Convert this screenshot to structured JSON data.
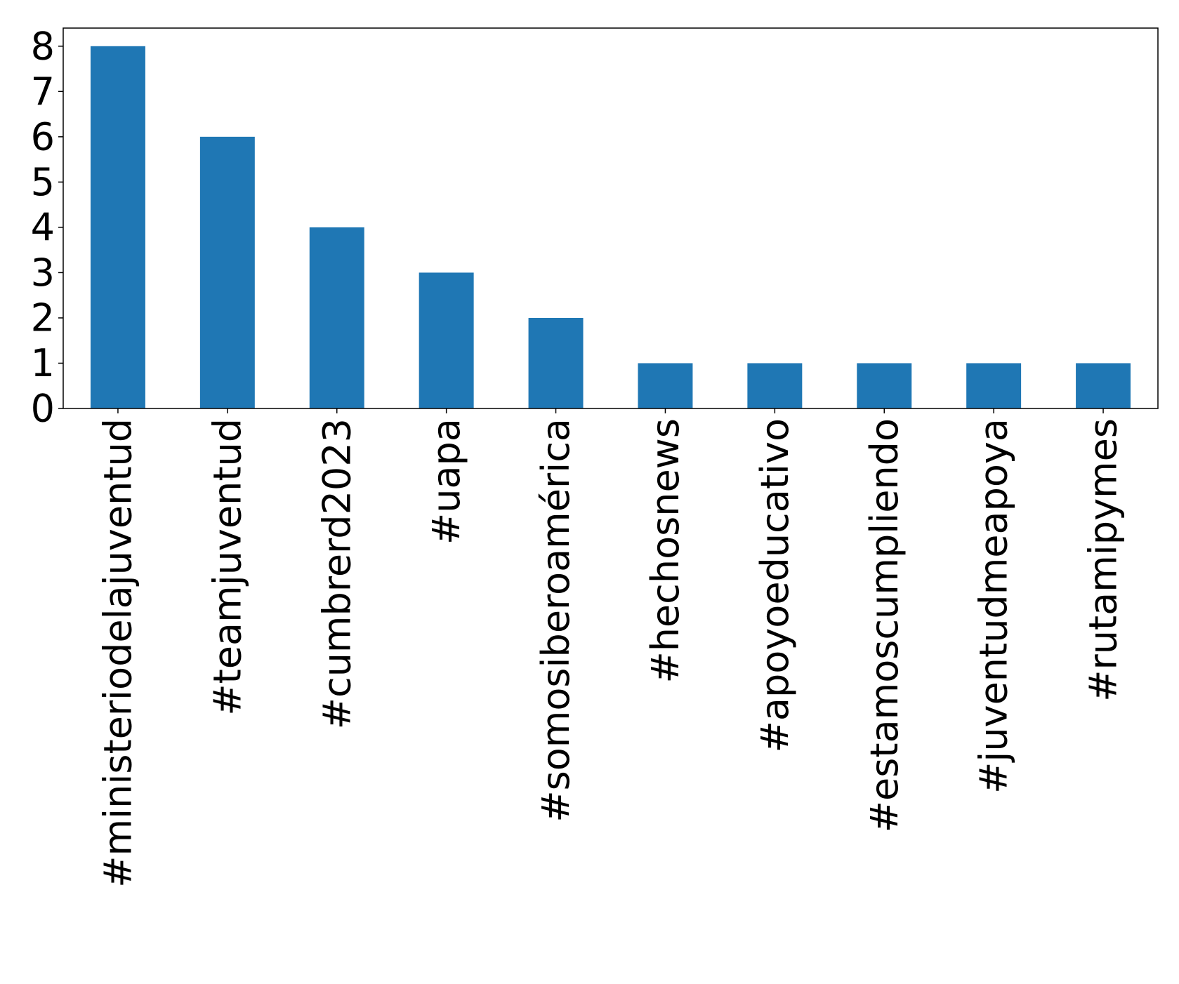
{
  "chart_data": {
    "type": "bar",
    "title": "",
    "xlabel": "",
    "ylabel": "",
    "categories": [
      "#ministeriodelajuventud",
      "#teamjuventud",
      "#cumbrerd2023",
      "#uapa",
      "#somosiberoamérica",
      "#hechosnews",
      "#apoyoeducativo",
      "#estamoscumpliendo",
      "#juventudmeapoya",
      "#rutamipymes"
    ],
    "values": [
      8,
      6,
      4,
      3,
      2,
      1,
      1,
      1,
      1,
      1
    ],
    "ylim": [
      0,
      8.4
    ],
    "yticks": [
      0,
      1,
      2,
      3,
      4,
      5,
      6,
      7,
      8
    ],
    "grid": false,
    "legend": "none",
    "bar_color": "#1f77b4"
  }
}
